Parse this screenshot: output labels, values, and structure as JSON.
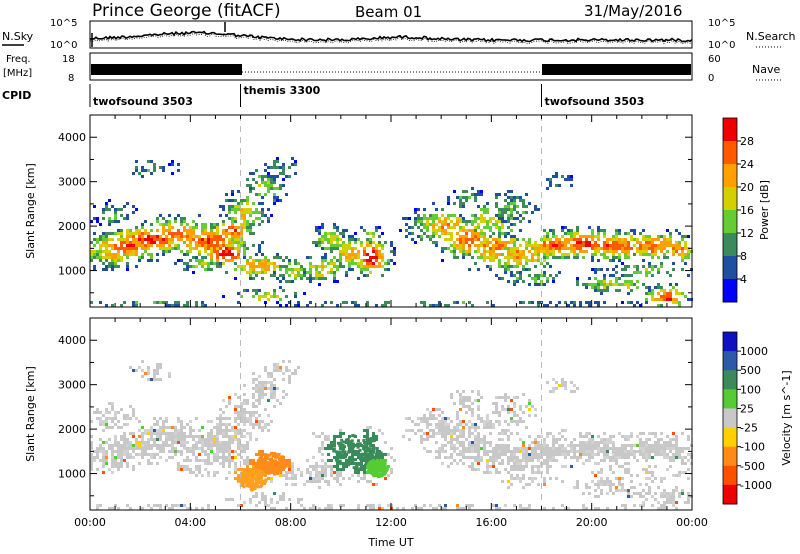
{
  "header": {
    "station": "Prince George (fitACF)",
    "beam": "Beam 01",
    "date": "31/May/2016"
  },
  "noise_panel": {
    "left_label": "N.Sky",
    "right_label": "N.Search",
    "left_ticks": [
      "10^5",
      "10^0"
    ],
    "right_ticks": [
      "10^5",
      "10^0"
    ]
  },
  "freq_panel": {
    "left_label_line1": "Freq.",
    "left_label_line2": "[MHz]",
    "right_label": "Nave",
    "left_ticks": [
      "18",
      "8"
    ],
    "right_ticks": [
      "60",
      "0"
    ]
  },
  "cpid": {
    "label": "CPID",
    "segments": [
      {
        "name": "twofsound 3503",
        "start_hour": 0,
        "end_hour": 6
      },
      {
        "name": "themis 3300",
        "start_hour": 6,
        "end_hour": 18
      },
      {
        "name": "twofsound 3503",
        "start_hour": 18,
        "end_hour": 24
      }
    ]
  },
  "chart_data": [
    {
      "type": "heatmap",
      "title": "",
      "ylabel": "Slant Range [km]",
      "xlim": [
        0,
        24
      ],
      "ylim": [
        180,
        4500
      ],
      "yticks": [
        "1000",
        "2000",
        "3000",
        "4000"
      ],
      "colorbar": {
        "label": "Power [dB]",
        "ticks": [
          "4",
          "8",
          "12",
          "16",
          "20",
          "24",
          "28"
        ],
        "colors": [
          "#0000ff",
          "#1e4fa0",
          "#3a8a5a",
          "#66cc33",
          "#d4d000",
          "#ffa000",
          "#ff5a00",
          "#ee0000"
        ]
      }
    },
    {
      "type": "heatmap",
      "title": "",
      "ylabel": "Slant Range [km]",
      "xlabel": "Time UT",
      "xlim": [
        0,
        24
      ],
      "ylim": [
        180,
        4500
      ],
      "xticks": [
        "00:00",
        "04:00",
        "08:00",
        "12:00",
        "16:00",
        "20:00",
        "00:00"
      ],
      "yticks": [
        "1000",
        "2000",
        "3000",
        "4000"
      ],
      "colorbar": {
        "label": "Velocity [m s^-1]",
        "ticks": [
          "1000",
          "500",
          "100",
          "25",
          "-25",
          "-100",
          "-500",
          "-1000"
        ],
        "colors": [
          "#1010c0",
          "#2a5aa8",
          "#3a8a5a",
          "#55cc33",
          "#c8c8c8",
          "#ffd000",
          "#ff8c1a",
          "#ff5000",
          "#ee0000"
        ]
      }
    }
  ]
}
